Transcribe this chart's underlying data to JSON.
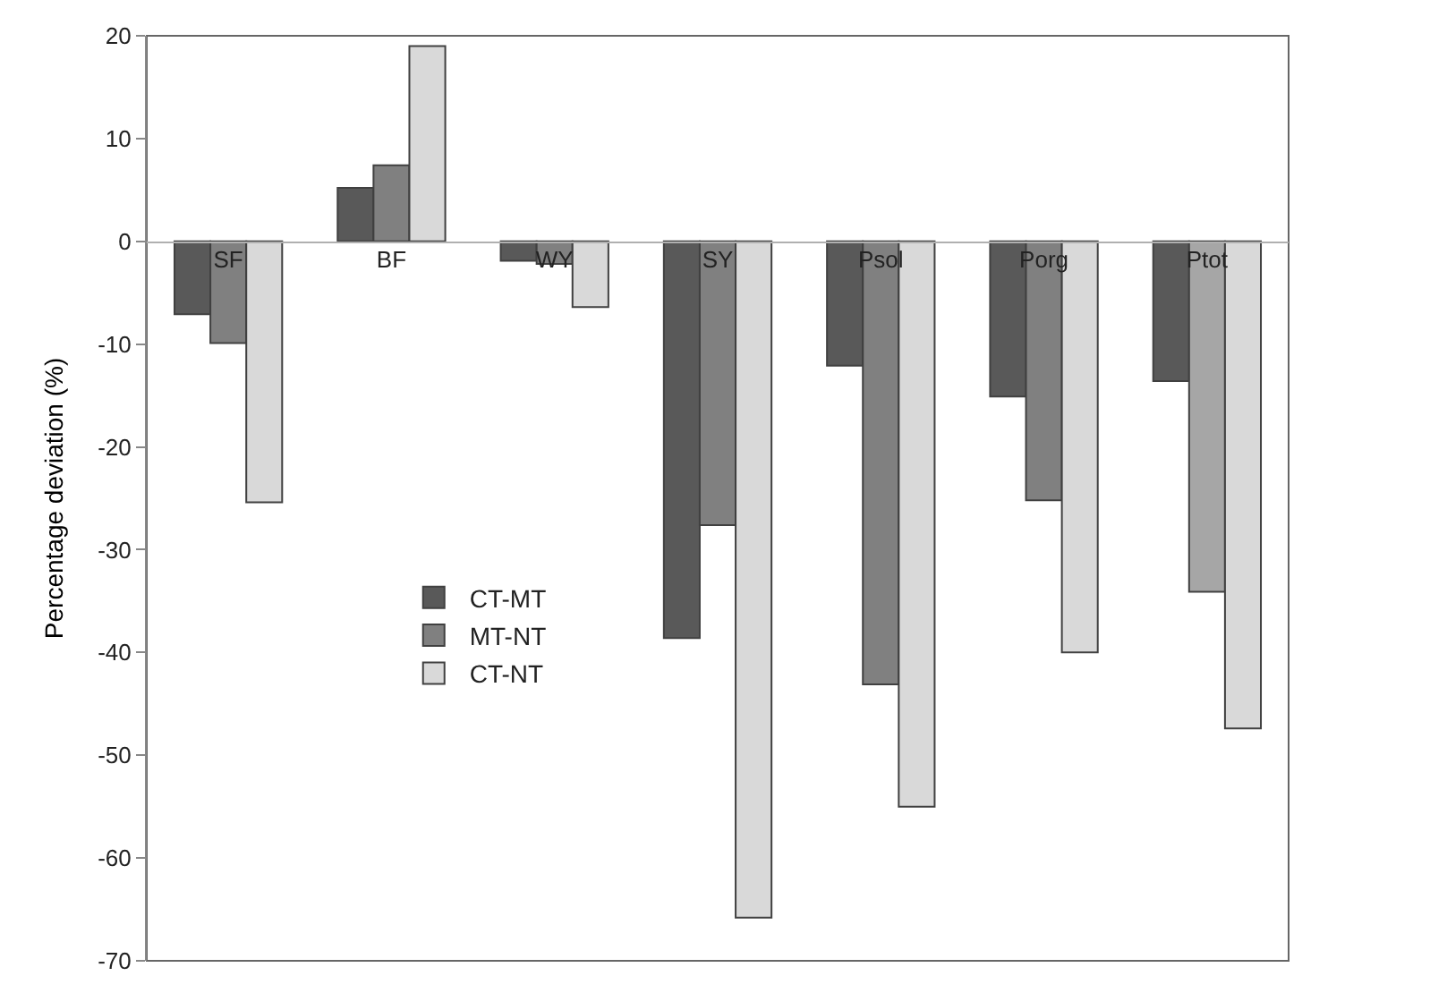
{
  "chart_data": {
    "type": "bar",
    "ylabel": "Percentage deviation (%)",
    "categories": [
      "SF",
      "BF",
      "WY",
      "SY",
      "Psol",
      "Porg",
      "Ptot"
    ],
    "series": [
      {
        "name": "CT-MT",
        "color": "#595959",
        "values": [
          -7.1,
          5.2,
          -1.9,
          -38.6,
          -12.1,
          -15.1,
          -13.6
        ]
      },
      {
        "name": "MT-NT",
        "color": "#808080",
        "colors": [
          "#808080",
          "#808080",
          "#808080",
          "#808080",
          "#808080",
          "#808080",
          "#a6a6a6"
        ],
        "values": [
          -9.9,
          7.4,
          -2.2,
          -27.6,
          -43.1,
          -25.2,
          -34.1
        ]
      },
      {
        "name": "CT-NT",
        "color": "#d9d9d9",
        "values": [
          -25.4,
          19,
          -6.4,
          -65.8,
          -55,
          -40,
          -47.4
        ]
      }
    ],
    "ylim": [
      -70,
      20
    ],
    "yticks": [
      -70,
      -60,
      -50,
      -40,
      -30,
      -20,
      -10,
      0,
      10,
      20
    ],
    "grid": false,
    "legend": "bottom left"
  }
}
